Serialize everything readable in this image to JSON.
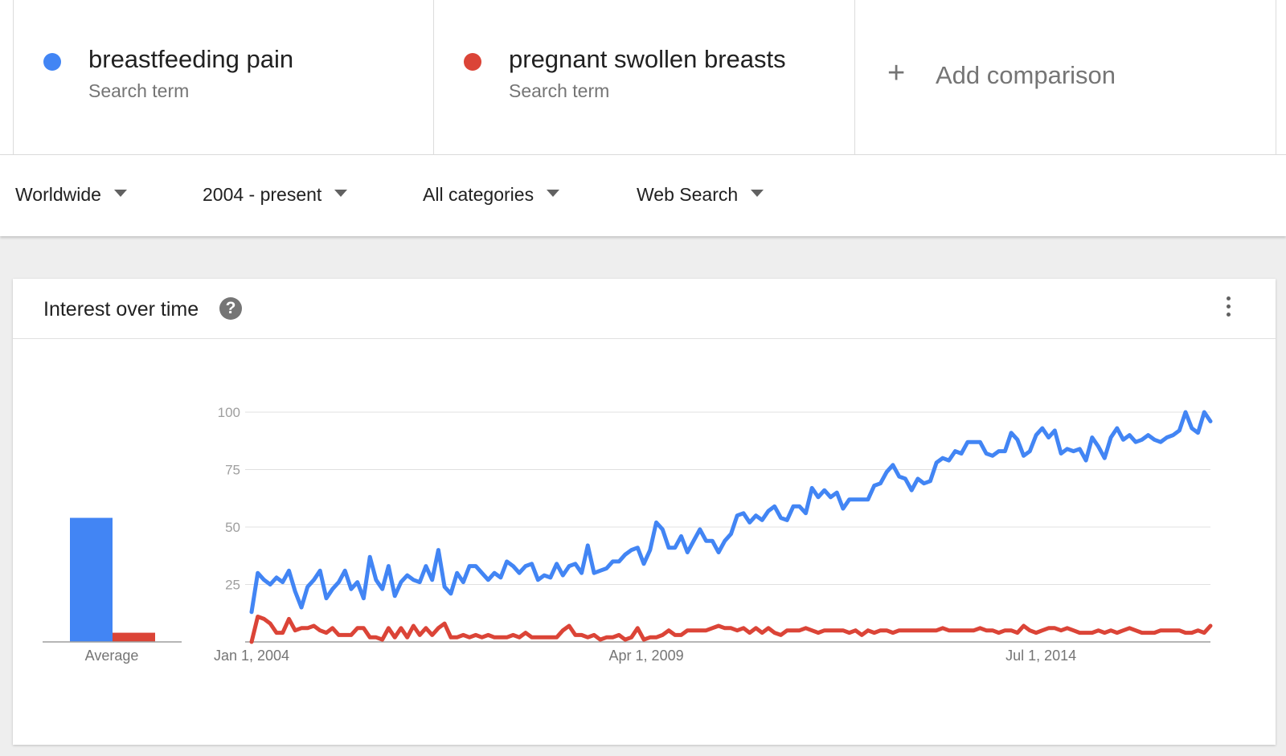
{
  "terms": [
    {
      "name": "breastfeeding pain",
      "sub": "Search term",
      "color": "#4285f4"
    },
    {
      "name": "pregnant swollen breasts",
      "sub": "Search term",
      "color": "#db4437"
    }
  ],
  "add_comparison": {
    "icon": "plus-icon",
    "label": "Add comparison"
  },
  "filters": {
    "region": "Worldwide",
    "time": "2004 - present",
    "category": "All categories",
    "search_type": "Web Search"
  },
  "card": {
    "title": "Interest over time",
    "help_icon": "help-icon",
    "menu_icon": "more-vert-icon"
  },
  "chart_data": {
    "type": "line",
    "yticks": [
      25,
      50,
      75,
      100
    ],
    "ylim": [
      0,
      100
    ],
    "xlim": [
      "2004-01-01",
      "2016-10-01"
    ],
    "xtick_labels": [
      "Jan 1, 2004",
      "Apr 1, 2009",
      "Jul 1, 2014"
    ],
    "xtick_dates": [
      "2004-01-01",
      "2009-04-01",
      "2014-07-01"
    ],
    "grid": true,
    "average_label": "Average",
    "averages": [
      54,
      4
    ],
    "series": [
      {
        "name": "breastfeeding pain",
        "color": "#4285f4",
        "values": [
          13,
          30,
          27,
          25,
          28,
          26,
          31,
          22,
          15,
          24,
          27,
          31,
          19,
          23,
          26,
          31,
          23,
          26,
          19,
          37,
          27,
          23,
          33,
          20,
          26,
          29,
          27,
          26,
          33,
          27,
          40,
          24,
          21,
          30,
          26,
          33,
          33,
          30,
          27,
          30,
          28,
          35,
          33,
          30,
          33,
          34,
          27,
          29,
          28,
          34,
          29,
          33,
          34,
          30,
          42,
          30,
          31,
          32,
          35,
          35,
          38,
          40,
          41,
          34,
          40,
          52,
          49,
          41,
          41,
          46,
          39,
          44,
          49,
          44,
          44,
          39,
          44,
          47,
          55,
          56,
          52,
          55,
          53,
          57,
          59,
          54,
          53,
          59,
          59,
          56,
          67,
          63,
          66,
          63,
          65,
          58,
          62,
          62,
          62,
          62,
          68,
          69,
          74,
          77,
          72,
          71,
          66,
          71,
          69,
          70,
          78,
          80,
          79,
          83,
          82,
          87,
          87,
          87,
          82,
          81,
          83,
          83,
          91,
          88,
          81,
          83,
          90,
          93,
          89,
          92,
          82,
          84,
          83,
          84,
          79,
          89,
          85,
          80,
          89,
          93,
          88,
          90,
          87,
          88,
          90,
          88,
          87,
          89,
          90,
          92,
          100,
          93,
          91,
          100,
          96
        ],
        "unit_note": ""
      },
      {
        "name": "pregnant swollen breasts",
        "color": "#db4437",
        "values": [
          0,
          11,
          10,
          8,
          4,
          4,
          10,
          5,
          6,
          6,
          7,
          5,
          4,
          6,
          3,
          3,
          3,
          6,
          6,
          2,
          2,
          1,
          6,
          2,
          6,
          2,
          7,
          3,
          6,
          3,
          6,
          8,
          2,
          2,
          3,
          2,
          3,
          2,
          3,
          2,
          2,
          2,
          3,
          2,
          4,
          2,
          2,
          2,
          2,
          2,
          5,
          7,
          3,
          3,
          2,
          3,
          1,
          2,
          2,
          3,
          1,
          2,
          6,
          1,
          2,
          2,
          3,
          5,
          3,
          3,
          5,
          5,
          5,
          5,
          6,
          7,
          6,
          6,
          5,
          6,
          4,
          6,
          4,
          6,
          4,
          3,
          5,
          5,
          5,
          6,
          5,
          4,
          5,
          5,
          5,
          5,
          4,
          5,
          3,
          5,
          4,
          5,
          5,
          4,
          5,
          5,
          5,
          5,
          5,
          5,
          5,
          6,
          5,
          5,
          5,
          5,
          5,
          6,
          5,
          5,
          4,
          5,
          5,
          4,
          7,
          5,
          4,
          5,
          6,
          6,
          5,
          6,
          5,
          4,
          4,
          4,
          5,
          4,
          5,
          4,
          5,
          6,
          5,
          4,
          4,
          4,
          5,
          5,
          5,
          5,
          4,
          4,
          5,
          4,
          7
        ]
      }
    ]
  }
}
